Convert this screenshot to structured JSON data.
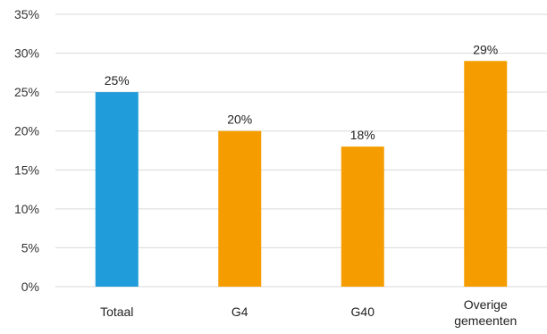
{
  "chart_data": {
    "type": "bar",
    "title": "",
    "xlabel": "",
    "ylabel": "",
    "categories": [
      "Totaal",
      "G4",
      "G40",
      "Overige gemeenten"
    ],
    "category_lines": [
      [
        "Totaal"
      ],
      [
        "G4"
      ],
      [
        "G40"
      ],
      [
        "Overige",
        "gemeenten"
      ]
    ],
    "values": [
      25,
      20,
      18,
      29
    ],
    "data_labels": [
      "25%",
      "20%",
      "18%",
      "29%"
    ],
    "bar_colors": [
      "#1f9cd9",
      "#f59d00",
      "#f59d00",
      "#f59d00"
    ],
    "ylim": [
      0,
      35
    ],
    "yticks": [
      0,
      5,
      10,
      15,
      20,
      25,
      30,
      35
    ],
    "ytick_labels": [
      "0%",
      "5%",
      "10%",
      "15%",
      "20%",
      "25%",
      "30%",
      "35%"
    ],
    "grid": true,
    "legend": "none"
  }
}
